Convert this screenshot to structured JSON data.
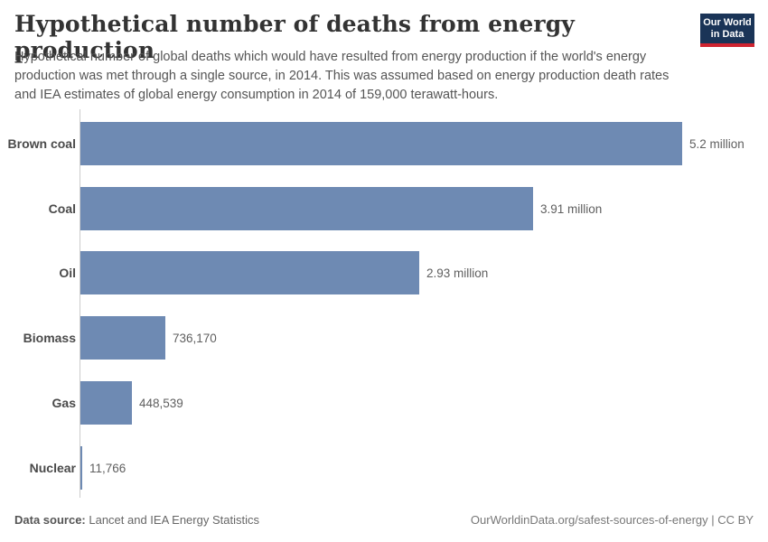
{
  "header": {
    "title": "Hypothetical number of deaths from energy production",
    "subtitle": "Hypothetical number of global deaths which would have resulted from energy production if the world's energy production was met through a single source, in 2014. This was assumed based on energy production death rates and IEA estimates of global energy consumption in 2014 of 159,000 terawatt-hours.",
    "logo": {
      "line1": "Our World",
      "line2": "in Data"
    }
  },
  "chart_data": {
    "type": "bar",
    "orientation": "horizontal",
    "title": "Hypothetical number of deaths from energy production",
    "categories": [
      "Brown coal",
      "Coal",
      "Oil",
      "Biomass",
      "Gas",
      "Nuclear"
    ],
    "values": [
      5200000,
      3910000,
      2930000,
      736170,
      448539,
      11766
    ],
    "value_labels": [
      "5.2 million",
      "3.91 million",
      "2.93 million",
      "736,170",
      "448,539",
      "11,766"
    ],
    "xlabel": "",
    "ylabel": "",
    "xlim": [
      0,
      5200000
    ],
    "grid": false,
    "legend": false,
    "bar_color": "#6e8ab3",
    "axis_color": "#cccccc"
  },
  "footer": {
    "source_label": "Data source:",
    "source_value": " Lancet and IEA Energy Statistics",
    "credit": "OurWorldinData.org/safest-sources-of-energy | CC BY"
  },
  "colors": {
    "title": "#333333",
    "subtitle": "#555555",
    "category_label": "#4a4a4a",
    "value_label": "#5f5f5f",
    "logo_bg": "#1a3457",
    "logo_stripe": "#cf2430"
  }
}
